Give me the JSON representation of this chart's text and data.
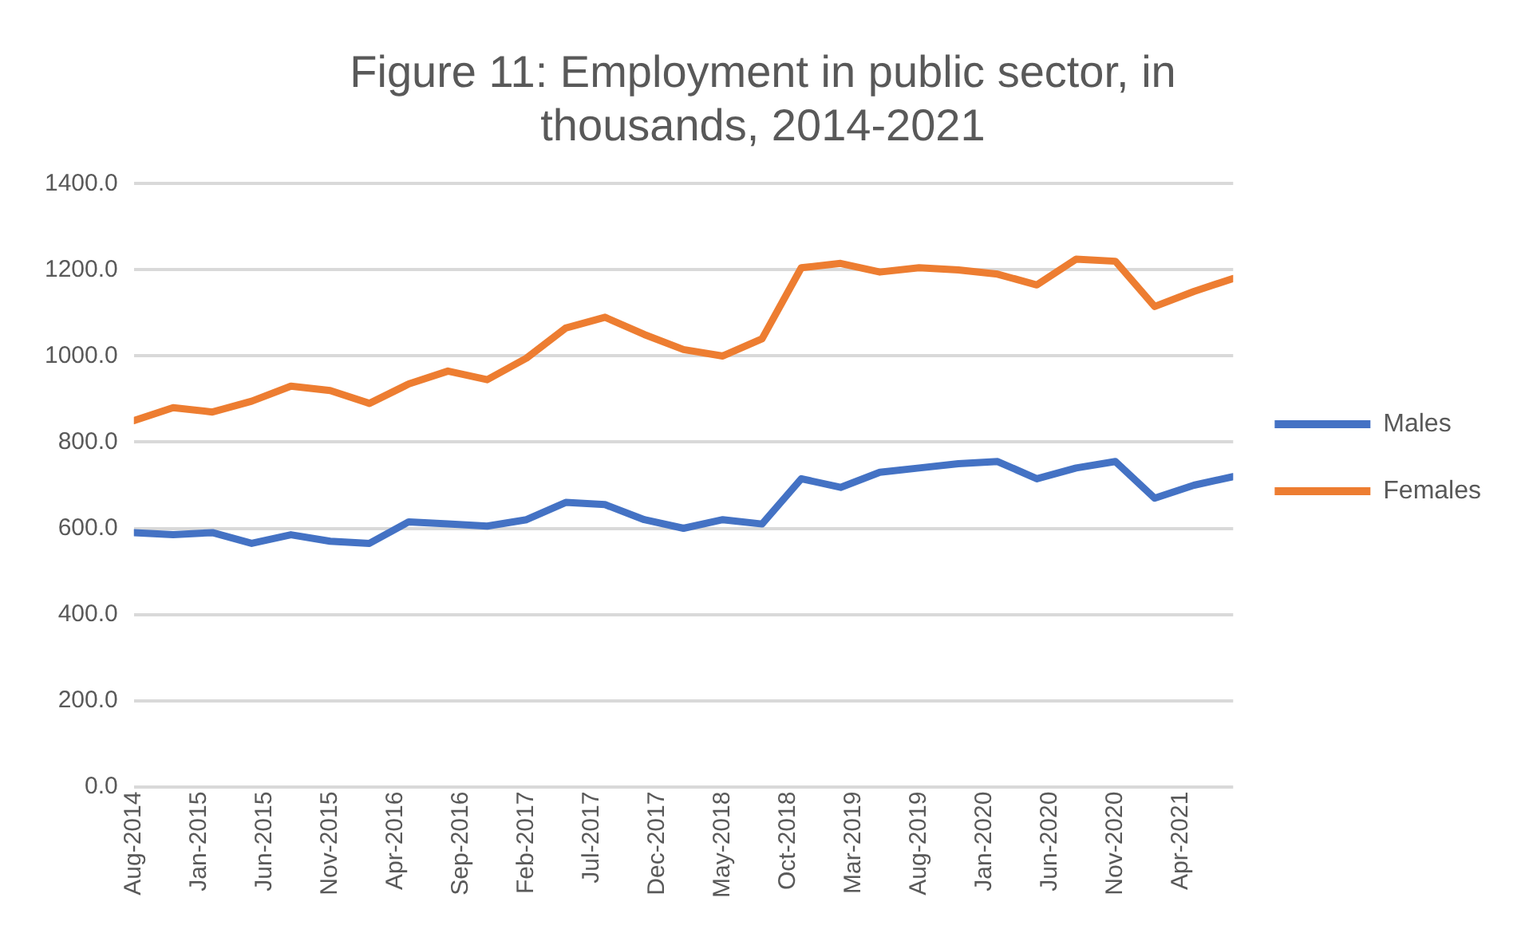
{
  "chart_data": {
    "type": "line",
    "title": "Figure 11: Employment in public sector, in thousands, 2014-2021",
    "x": [
      "2014-08",
      "2014-11",
      "2015-02",
      "2015-05",
      "2015-08",
      "2015-11",
      "2016-02",
      "2016-05",
      "2016-08",
      "2016-11",
      "2017-02",
      "2017-05",
      "2017-08",
      "2017-11",
      "2018-02",
      "2018-05",
      "2018-08",
      "2018-11",
      "2019-02",
      "2019-05",
      "2019-08",
      "2019-11",
      "2020-02",
      "2020-05",
      "2020-08",
      "2020-11",
      "2021-02",
      "2021-05",
      "2021-08"
    ],
    "series": [
      {
        "name": "Males",
        "color": "#4472c4",
        "values": [
          590,
          585,
          590,
          565,
          585,
          570,
          565,
          615,
          610,
          605,
          620,
          660,
          655,
          620,
          600,
          620,
          610,
          715,
          695,
          730,
          740,
          750,
          755,
          715,
          740,
          755,
          670,
          700,
          720
        ]
      },
      {
        "name": "Females",
        "color": "#ed7d31",
        "values": [
          850,
          880,
          870,
          895,
          930,
          920,
          890,
          935,
          965,
          945,
          995,
          1065,
          1090,
          1050,
          1015,
          1000,
          1040,
          1205,
          1215,
          1195,
          1205,
          1200,
          1190,
          1165,
          1225,
          1220,
          1115,
          1150,
          1180
        ]
      }
    ],
    "xlim": [
      "2014-08",
      "2021-08"
    ],
    "xticks": [
      {
        "value": "2014-08",
        "label": "Aug-2014"
      },
      {
        "value": "2015-01",
        "label": "Jan-2015"
      },
      {
        "value": "2015-06",
        "label": "Jun-2015"
      },
      {
        "value": "2015-11",
        "label": "Nov-2015"
      },
      {
        "value": "2016-04",
        "label": "Apr-2016"
      },
      {
        "value": "2016-09",
        "label": "Sep-2016"
      },
      {
        "value": "2017-02",
        "label": "Feb-2017"
      },
      {
        "value": "2017-07",
        "label": "Jul-2017"
      },
      {
        "value": "2017-12",
        "label": "Dec-2017"
      },
      {
        "value": "2018-05",
        "label": "May-2018"
      },
      {
        "value": "2018-10",
        "label": "Oct-2018"
      },
      {
        "value": "2019-03",
        "label": "Mar-2019"
      },
      {
        "value": "2019-08",
        "label": "Aug-2019"
      },
      {
        "value": "2020-01",
        "label": "Jan-2020"
      },
      {
        "value": "2020-06",
        "label": "Jun-2020"
      },
      {
        "value": "2020-11",
        "label": "Nov-2020"
      },
      {
        "value": "2021-04",
        "label": "Apr-2021"
      }
    ],
    "ylim": [
      0,
      1400
    ],
    "yticks": [
      {
        "value": 0,
        "label": "0.0"
      },
      {
        "value": 200,
        "label": "200.0"
      },
      {
        "value": 400,
        "label": "400.0"
      },
      {
        "value": 600,
        "label": "600.0"
      },
      {
        "value": 800,
        "label": "800.0"
      },
      {
        "value": 1000,
        "label": "1000.0"
      },
      {
        "value": 1200,
        "label": "1200.0"
      },
      {
        "value": 1400,
        "label": "1400.0"
      }
    ],
    "grid": "y",
    "legend": "right",
    "marker": "none",
    "line_style": "solid"
  }
}
